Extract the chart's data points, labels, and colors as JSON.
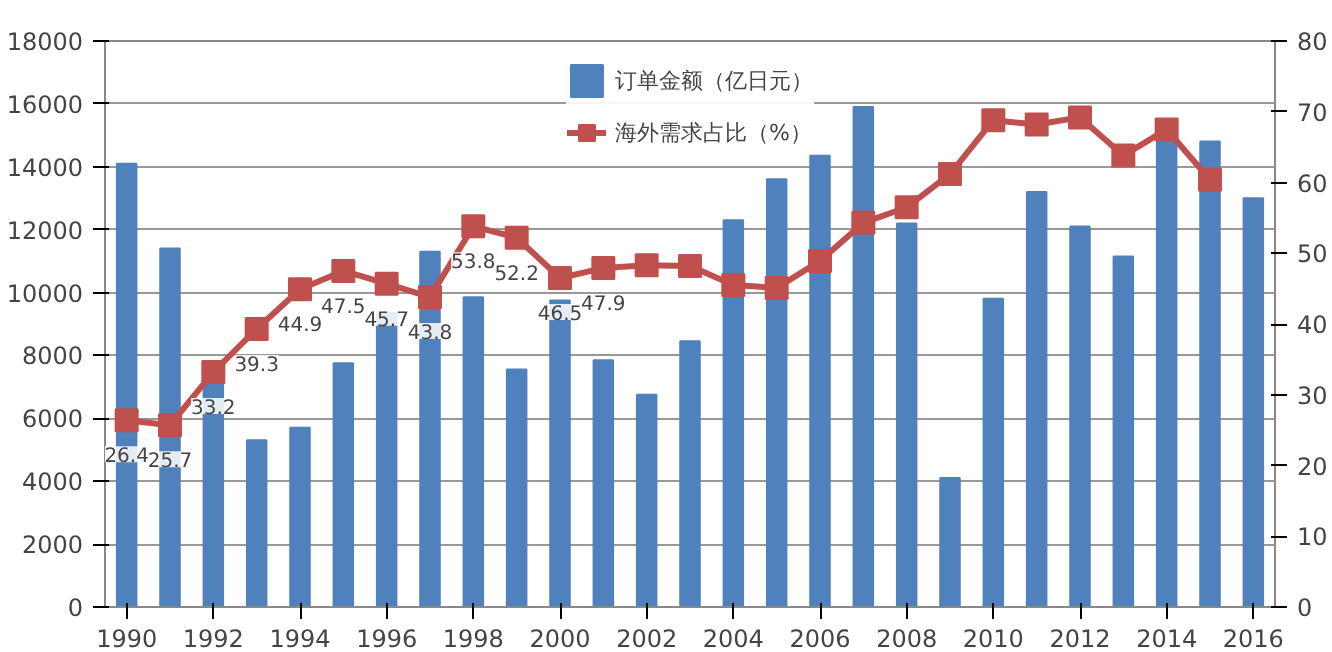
{
  "chart_data": {
    "type": "bar",
    "x": [
      1990,
      1991,
      1992,
      1993,
      1994,
      1995,
      1996,
      1997,
      1998,
      1999,
      2000,
      2001,
      2002,
      2003,
      2004,
      2005,
      2006,
      2007,
      2008,
      2009,
      2010,
      2011,
      2012,
      2013,
      2014,
      2015,
      2016
    ],
    "series": [
      {
        "name": "订单金额（亿日元）",
        "color": "#4f81bd",
        "values": [
          14100,
          11400,
          7200,
          5300,
          5700,
          7750,
          9350,
          11300,
          9850,
          7550,
          9750,
          7850,
          6750,
          8450,
          12300,
          13600,
          14350,
          15900,
          12200,
          4100,
          9800,
          13200,
          12100,
          11150,
          15000,
          14800,
          13000
        ]
      },
      {
        "name": "海外需求占比（%）",
        "type": "line",
        "axis": "y2",
        "color": "#c0504d",
        "marker": "square",
        "values": [
          26.4,
          25.7,
          33.2,
          39.3,
          44.9,
          47.5,
          45.7,
          43.8,
          53.8,
          52.2,
          46.5,
          47.9,
          48.3,
          48.2,
          45.5,
          45.1,
          48.9,
          54.3,
          56.5,
          61.2,
          68.8,
          68.2,
          69.2,
          63.8,
          67.5,
          60.4,
          null
        ],
        "value_labels": [
          "26.4",
          "25.7",
          "33.2",
          "39.3",
          "44.9",
          "47.5",
          "45.7",
          "43.8",
          "53.8",
          "52.2",
          "46.5",
          "47.9",
          null,
          null,
          null,
          null,
          null,
          null,
          null,
          null,
          null,
          null,
          null,
          null,
          null,
          null,
          null
        ]
      }
    ],
    "xlim": [
      1989.5,
      2016.5
    ],
    "xticks": [
      1990,
      1992,
      1994,
      1996,
      1998,
      2000,
      2002,
      2004,
      2006,
      2008,
      2010,
      2012,
      2014,
      2016
    ],
    "ylim": [
      0,
      18000
    ],
    "yticks": [
      0,
      2000,
      4000,
      6000,
      8000,
      10000,
      12000,
      14000,
      16000,
      18000
    ],
    "y2lim": [
      0,
      80
    ],
    "y2ticks": [
      0,
      10,
      20,
      30,
      40,
      50,
      60,
      70,
      80
    ],
    "grid": "y",
    "legend": "top"
  }
}
